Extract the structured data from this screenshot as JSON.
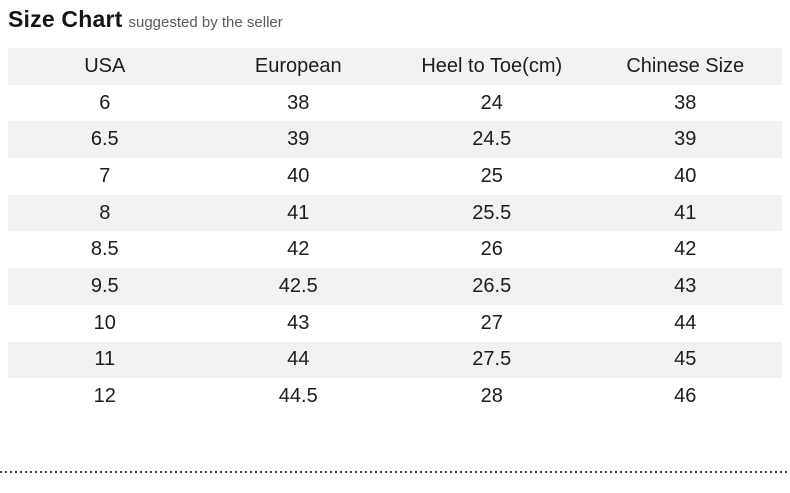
{
  "header": {
    "title": "Size Chart",
    "subtitle": "suggested by the seller"
  },
  "chart_data": {
    "type": "table",
    "title": "Size Chart",
    "columns": [
      "USA",
      "European",
      "Heel to Toe(cm)",
      "Chinese Size"
    ],
    "rows": [
      [
        "6",
        "38",
        "24",
        "38"
      ],
      [
        "6.5",
        "39",
        "24.5",
        "39"
      ],
      [
        "7",
        "40",
        "25",
        "40"
      ],
      [
        "8",
        "41",
        "25.5",
        "41"
      ],
      [
        "8.5",
        "42",
        "26",
        "42"
      ],
      [
        "9.5",
        "42.5",
        "26.5",
        "43"
      ],
      [
        "10",
        "43",
        "27",
        "44"
      ],
      [
        "11",
        "44",
        "27.5",
        "45"
      ],
      [
        "12",
        "44.5",
        "28",
        "46"
      ]
    ]
  },
  "colors": {
    "row_alt_background": "#f2f2f2",
    "text": "#1c1c1c",
    "subtitle_text": "#5a5a5a",
    "dotted_line": "#3c3c3c"
  }
}
